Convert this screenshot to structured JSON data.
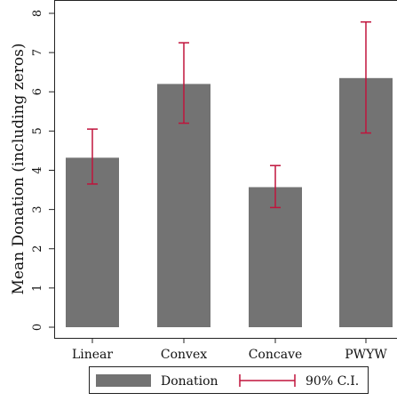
{
  "chart_data": {
    "type": "bar",
    "title": "",
    "xlabel": "",
    "ylabel": "Mean Donation (including zeros)",
    "categories": [
      "Linear",
      "Convex",
      "Concave",
      "PWYW"
    ],
    "ylim": [
      0,
      8
    ],
    "yticks": [
      "0",
      "1",
      "2",
      "3",
      "4",
      "5",
      "6",
      "7",
      "8"
    ],
    "series": [
      {
        "name": "Donation",
        "values": [
          4.32,
          6.2,
          3.57,
          6.35
        ]
      }
    ],
    "error_bars": {
      "name": "90% C.I.",
      "lower": [
        3.65,
        5.2,
        3.05,
        4.95
      ],
      "upper": [
        5.05,
        7.25,
        4.12,
        7.78
      ]
    },
    "grid": false,
    "legend_position": "bottom",
    "colors": {
      "bar": "#737373",
      "error": "#c0143c",
      "axis": "#222222"
    }
  }
}
